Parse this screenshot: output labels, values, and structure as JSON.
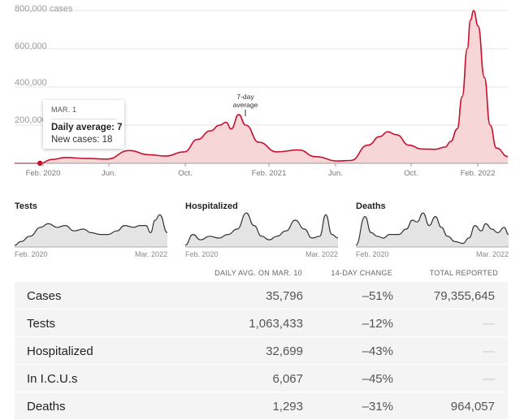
{
  "main_chart": {
    "y_ticks": [
      "800,000 cases",
      "600,000",
      "400,000",
      "200,000"
    ],
    "x_ticks": [
      "Feb. 2020",
      "Jun.",
      "Oct.",
      "Feb. 2021",
      "Jun.",
      "Oct.",
      "Feb. 2022"
    ],
    "annotation": [
      "7-day",
      "average"
    ],
    "tooltip": {
      "date": "MAR. 1",
      "average": "Daily average: 7",
      "new_cases": "New cases: 18"
    }
  },
  "small_charts": [
    {
      "title": "Tests",
      "x_start": "Feb. 2020",
      "x_end": "Mar. 2022"
    },
    {
      "title": "Hospitalized",
      "x_start": "Feb. 2020",
      "x_end": "Mar. 2022"
    },
    {
      "title": "Deaths",
      "x_start": "Feb. 2020",
      "x_end": "Mar. 2022"
    }
  ],
  "table": {
    "headers": [
      "DAILY AVG. ON MAR. 10",
      "14-DAY CHANGE",
      "TOTAL REPORTED"
    ],
    "rows": [
      {
        "name": "Cases",
        "avg": "35,796",
        "change": "–51%",
        "total": "79,355,645"
      },
      {
        "name": "Tests",
        "avg": "1,063,433",
        "change": "–12%",
        "total": "—"
      },
      {
        "name": "Hospitalized",
        "avg": "32,699",
        "change": "–43%",
        "total": "—"
      },
      {
        "name": "In I.C.U.s",
        "avg": "6,067",
        "change": "–45%",
        "total": "—"
      },
      {
        "name": "Deaths",
        "avg": "1,293",
        "change": "–31%",
        "total": "964,057"
      }
    ]
  },
  "colors": {
    "cases_line": "#c8102e",
    "cases_fill": "#f6d6d6",
    "small_line": "#333333",
    "small_fill": "#e4e4e4"
  },
  "chart_data": [
    {
      "type": "area",
      "title": "Cases 7-day average",
      "ylim": [
        0,
        800000
      ],
      "x_range": [
        "2020-01-21",
        "2022-03-10"
      ],
      "x": [
        "2020-01-21",
        "2020-03-01",
        "2020-03-20",
        "2020-04-10",
        "2020-05-15",
        "2020-06-15",
        "2020-07-20",
        "2020-08-20",
        "2020-09-15",
        "2020-10-15",
        "2020-11-05",
        "2020-11-25",
        "2020-12-10",
        "2020-12-20",
        "2020-12-28",
        "2021-01-09",
        "2021-01-20",
        "2021-02-10",
        "2021-03-10",
        "2021-04-14",
        "2021-05-10",
        "2021-06-15",
        "2021-07-05",
        "2021-08-01",
        "2021-08-20",
        "2021-09-01",
        "2021-09-15",
        "2021-10-05",
        "2021-10-25",
        "2021-11-15",
        "2021-12-01",
        "2021-12-10",
        "2021-12-20",
        "2021-12-28",
        "2022-01-05",
        "2022-01-10",
        "2022-01-15",
        "2022-01-22",
        "2022-02-01",
        "2022-02-10",
        "2022-02-20",
        "2022-03-10"
      ],
      "y": [
        0,
        7,
        20000,
        30000,
        25000,
        22000,
        67000,
        45000,
        38000,
        60000,
        125000,
        170000,
        200000,
        215000,
        180000,
        255000,
        200000,
        110000,
        60000,
        70000,
        35000,
        12000,
        15000,
        95000,
        140000,
        165000,
        150000,
        95000,
        75000,
        73000,
        85000,
        115000,
        180000,
        350000,
        600000,
        750000,
        800000,
        720000,
        450000,
        200000,
        80000,
        35796
      ],
      "annotations": [
        "7-day average"
      ],
      "y_ticks": [
        200000,
        400000,
        600000,
        800000
      ]
    },
    {
      "type": "area",
      "title": "Tests",
      "x": [
        0,
        0.04,
        0.1,
        0.17,
        0.22,
        0.28,
        0.33,
        0.39,
        0.45,
        0.5,
        0.56,
        0.61,
        0.67,
        0.72,
        0.78,
        0.82,
        0.86,
        0.89,
        0.92,
        0.95,
        1.0
      ],
      "y": [
        0.05,
        0.15,
        0.3,
        0.55,
        0.65,
        0.55,
        0.6,
        0.45,
        0.5,
        0.4,
        0.35,
        0.35,
        0.45,
        0.6,
        0.55,
        0.6,
        0.6,
        0.4,
        0.75,
        0.9,
        0.4
      ]
    },
    {
      "type": "area",
      "title": "Hospitalized",
      "x": [
        0,
        0.05,
        0.1,
        0.16,
        0.22,
        0.28,
        0.34,
        0.4,
        0.45,
        0.5,
        0.55,
        0.6,
        0.66,
        0.72,
        0.78,
        0.83,
        0.88,
        0.92,
        0.96,
        1.0
      ],
      "y": [
        0.05,
        0.35,
        0.2,
        0.3,
        0.25,
        0.35,
        0.5,
        0.95,
        0.6,
        0.3,
        0.2,
        0.3,
        0.45,
        0.75,
        0.5,
        0.25,
        0.3,
        0.9,
        0.35,
        0.25
      ]
    },
    {
      "type": "area",
      "title": "Deaths",
      "x": [
        0,
        0.06,
        0.1,
        0.14,
        0.18,
        0.22,
        0.28,
        0.33,
        0.37,
        0.4,
        0.44,
        0.48,
        0.52,
        0.56,
        0.6,
        0.65,
        0.7,
        0.74,
        0.78,
        0.82,
        0.85,
        0.89,
        0.93,
        0.97,
        1.0
      ],
      "y": [
        0.05,
        0.85,
        0.4,
        0.3,
        0.25,
        0.35,
        0.35,
        0.5,
        0.75,
        0.7,
        0.95,
        0.6,
        0.85,
        0.55,
        0.3,
        0.15,
        0.1,
        0.25,
        0.6,
        0.45,
        0.65,
        0.5,
        0.4,
        0.55,
        0.35
      ]
    }
  ]
}
